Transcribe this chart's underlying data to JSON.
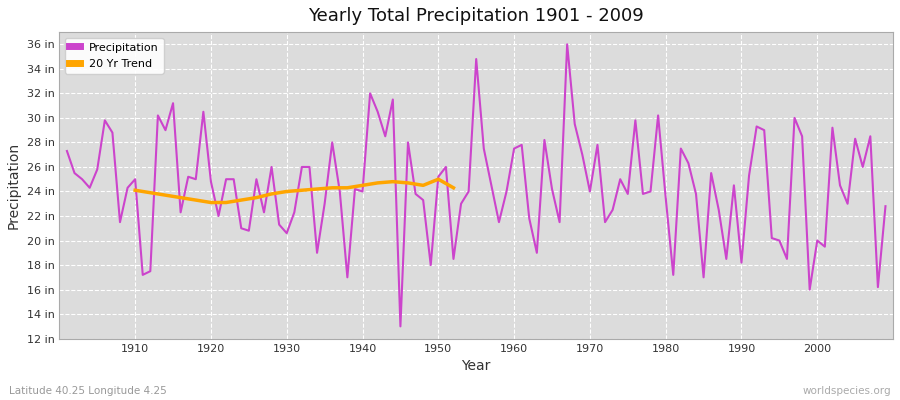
{
  "title": "Yearly Total Precipitation 1901 - 2009",
  "xlabel": "Year",
  "ylabel": "Precipitation",
  "subtitle": "Latitude 40.25 Longitude 4.25",
  "watermark": "worldspecies.org",
  "fig_bg_color": "#ffffff",
  "plot_bg_color": "#dcdcdc",
  "precip_color": "#cc44cc",
  "trend_color": "#ffa500",
  "ylim": [
    12,
    37
  ],
  "yticks": [
    12,
    14,
    16,
    18,
    20,
    22,
    24,
    26,
    28,
    30,
    32,
    34,
    36
  ],
  "xticks": [
    1910,
    1920,
    1930,
    1940,
    1950,
    1960,
    1970,
    1980,
    1990,
    2000
  ],
  "xlim": [
    1900,
    2010
  ],
  "years": [
    1901,
    1902,
    1903,
    1904,
    1905,
    1906,
    1907,
    1908,
    1909,
    1910,
    1911,
    1912,
    1913,
    1914,
    1915,
    1916,
    1917,
    1918,
    1919,
    1920,
    1921,
    1922,
    1923,
    1924,
    1925,
    1926,
    1927,
    1928,
    1929,
    1930,
    1931,
    1932,
    1933,
    1934,
    1935,
    1936,
    1937,
    1938,
    1939,
    1940,
    1941,
    1942,
    1943,
    1944,
    1945,
    1946,
    1947,
    1948,
    1949,
    1950,
    1951,
    1952,
    1953,
    1954,
    1955,
    1956,
    1957,
    1958,
    1959,
    1960,
    1961,
    1962,
    1963,
    1964,
    1965,
    1966,
    1967,
    1968,
    1969,
    1970,
    1971,
    1972,
    1973,
    1974,
    1975,
    1976,
    1977,
    1978,
    1979,
    1980,
    1981,
    1982,
    1983,
    1984,
    1985,
    1986,
    1987,
    1988,
    1989,
    1990,
    1991,
    1992,
    1993,
    1994,
    1995,
    1996,
    1997,
    1998,
    1999,
    2000,
    2001,
    2002,
    2003,
    2004,
    2005,
    2006,
    2007,
    2008,
    2009
  ],
  "precip": [
    27.3,
    25.5,
    25.0,
    24.3,
    25.8,
    29.8,
    28.8,
    21.5,
    24.3,
    25.0,
    17.2,
    17.5,
    30.2,
    29.0,
    31.2,
    22.3,
    25.2,
    25.0,
    30.5,
    24.8,
    22.0,
    25.0,
    25.0,
    21.0,
    20.8,
    25.0,
    22.3,
    26.0,
    21.3,
    20.6,
    22.3,
    26.0,
    26.0,
    19.0,
    23.0,
    28.0,
    24.0,
    17.0,
    24.2,
    24.0,
    32.0,
    30.5,
    28.5,
    31.5,
    13.0,
    28.0,
    23.8,
    23.3,
    18.0,
    25.2,
    26.0,
    18.5,
    23.0,
    24.0,
    34.8,
    27.5,
    24.5,
    21.5,
    24.0,
    27.5,
    27.8,
    21.8,
    19.0,
    28.2,
    24.2,
    21.5,
    36.0,
    29.5,
    27.0,
    24.0,
    27.8,
    21.5,
    22.5,
    25.0,
    23.8,
    29.8,
    23.8,
    24.0,
    30.2,
    23.5,
    17.2,
    27.5,
    26.3,
    23.8,
    17.0,
    25.5,
    22.5,
    18.5,
    24.5,
    18.2,
    25.3,
    29.3,
    29.0,
    20.2,
    20.0,
    18.5,
    30.0,
    28.5,
    16.0,
    20.0,
    19.5,
    29.2,
    24.5,
    23.0,
    28.3,
    26.0,
    28.5,
    16.2,
    22.8
  ],
  "trend_years": [
    1910,
    1912,
    1914,
    1916,
    1918,
    1920,
    1922,
    1924,
    1926,
    1928,
    1930,
    1932,
    1934,
    1936,
    1938,
    1940,
    1942,
    1944,
    1946,
    1948,
    1950,
    1952
  ],
  "trend_vals": [
    24.1,
    23.9,
    23.7,
    23.5,
    23.3,
    23.1,
    23.1,
    23.3,
    23.5,
    23.8,
    24.0,
    24.1,
    24.2,
    24.3,
    24.3,
    24.5,
    24.7,
    24.8,
    24.7,
    24.5,
    25.0,
    24.3
  ]
}
